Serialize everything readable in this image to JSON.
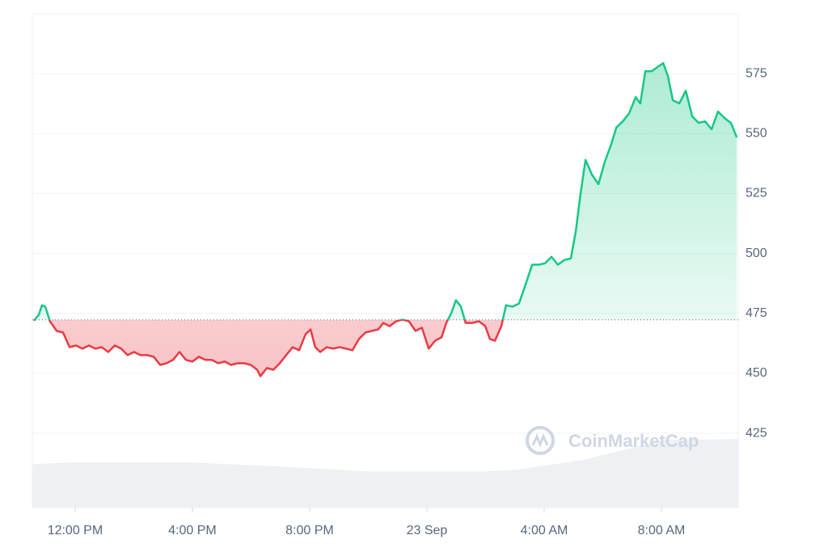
{
  "chart_data": {
    "type": "line",
    "x": [
      -1.41,
      -1.24,
      -1.13,
      -1.02,
      -0.86,
      -0.63,
      -0.41,
      -0.19,
      0.03,
      0.25,
      0.47,
      0.69,
      0.91,
      1.13,
      1.35,
      1.57,
      1.79,
      2.01,
      2.23,
      2.46,
      2.68,
      2.9,
      3.12,
      3.34,
      3.56,
      3.78,
      4.0,
      4.22,
      4.44,
      4.66,
      4.88,
      5.1,
      5.32,
      5.54,
      5.77,
      5.99,
      6.21,
      6.32,
      6.54,
      6.76,
      6.98,
      7.2,
      7.42,
      7.64,
      7.86,
      8.03,
      8.19,
      8.36,
      8.58,
      8.8,
      9.02,
      9.24,
      9.46,
      9.68,
      9.9,
      10.12,
      10.34,
      10.51,
      10.73,
      10.95,
      11.17,
      11.39,
      11.61,
      11.83,
      12.06,
      12.28,
      12.5,
      12.66,
      12.83,
      12.99,
      13.16,
      13.32,
      13.54,
      13.77,
      13.99,
      14.15,
      14.32,
      14.54,
      14.7,
      14.92,
      15.14,
      15.37,
      15.59,
      15.81,
      16.03,
      16.25,
      16.47,
      16.69,
      16.91,
      17.08,
      17.24,
      17.41,
      17.63,
      17.85,
      18.07,
      18.29,
      18.46,
      18.68,
      18.9,
      19.12,
      19.28,
      19.45,
      19.67,
      19.89,
      20.06,
      20.22,
      20.39,
      20.61,
      20.83,
      21.05,
      21.27,
      21.49,
      21.71,
      21.93,
      22.15,
      22.37,
      22.57
    ],
    "values": [
      472.0,
      474.4,
      478.4,
      477.8,
      471.7,
      467.7,
      467.0,
      460.9,
      461.6,
      460.3,
      461.6,
      460.3,
      460.9,
      458.9,
      461.6,
      460.3,
      457.6,
      458.9,
      457.6,
      457.6,
      456.9,
      453.5,
      454.2,
      455.6,
      458.9,
      455.6,
      454.9,
      456.9,
      455.6,
      455.6,
      454.2,
      454.9,
      453.5,
      454.2,
      454.2,
      453.5,
      451.5,
      448.8,
      452.2,
      451.5,
      454.2,
      457.6,
      460.9,
      459.6,
      466.3,
      468.3,
      460.9,
      458.9,
      460.9,
      460.3,
      460.9,
      460.3,
      459.6,
      464.3,
      467.0,
      467.7,
      468.3,
      471.0,
      469.7,
      471.7,
      472.4,
      471.7,
      467.7,
      469.0,
      460.3,
      463.6,
      465.0,
      471.0,
      475.1,
      480.5,
      477.8,
      471.0,
      471.0,
      471.7,
      469.7,
      464.3,
      463.6,
      469.7,
      478.4,
      477.8,
      479.1,
      487.2,
      495.3,
      495.3,
      495.9,
      498.6,
      495.3,
      497.3,
      497.9,
      509.4,
      524.9,
      539.0,
      532.9,
      528.9,
      538.3,
      545.7,
      552.5,
      555.1,
      558.5,
      565.2,
      562.6,
      576.0,
      576.0,
      578.0,
      579.4,
      574.0,
      563.9,
      562.6,
      567.9,
      557.2,
      554.5,
      555.1,
      551.8,
      559.2,
      556.5,
      554.5,
      548.4
    ],
    "baseline": 472.3,
    "up_color": "#16c784",
    "down_color": "#ea3943",
    "volume": {
      "color": "#eef0f4",
      "x": [
        -1.46,
        -0.2,
        4,
        7,
        10,
        14,
        15.1,
        17.3,
        19,
        20.1,
        22.62
      ],
      "values": [
        412.1,
        412.8,
        412.8,
        411.1,
        409.1,
        409.1,
        409.8,
        413.8,
        418.9,
        422.2,
        422.6
      ]
    },
    "xlim": [
      -1.46,
      22.62
    ],
    "xticks": [
      {
        "value": 0,
        "label": "12:00 PM"
      },
      {
        "value": 4,
        "label": "4:00 PM"
      },
      {
        "value": 8,
        "label": "8:00 PM"
      },
      {
        "value": 12,
        "label": "23 Sep"
      },
      {
        "value": 16,
        "label": "4:00 AM"
      },
      {
        "value": 20,
        "label": "8:00 AM"
      }
    ],
    "ylim": [
      394,
      600
    ],
    "yticks": [
      425,
      450,
      475,
      500,
      525,
      550,
      575
    ],
    "grid": true,
    "watermark": "CoinMarketCap"
  }
}
